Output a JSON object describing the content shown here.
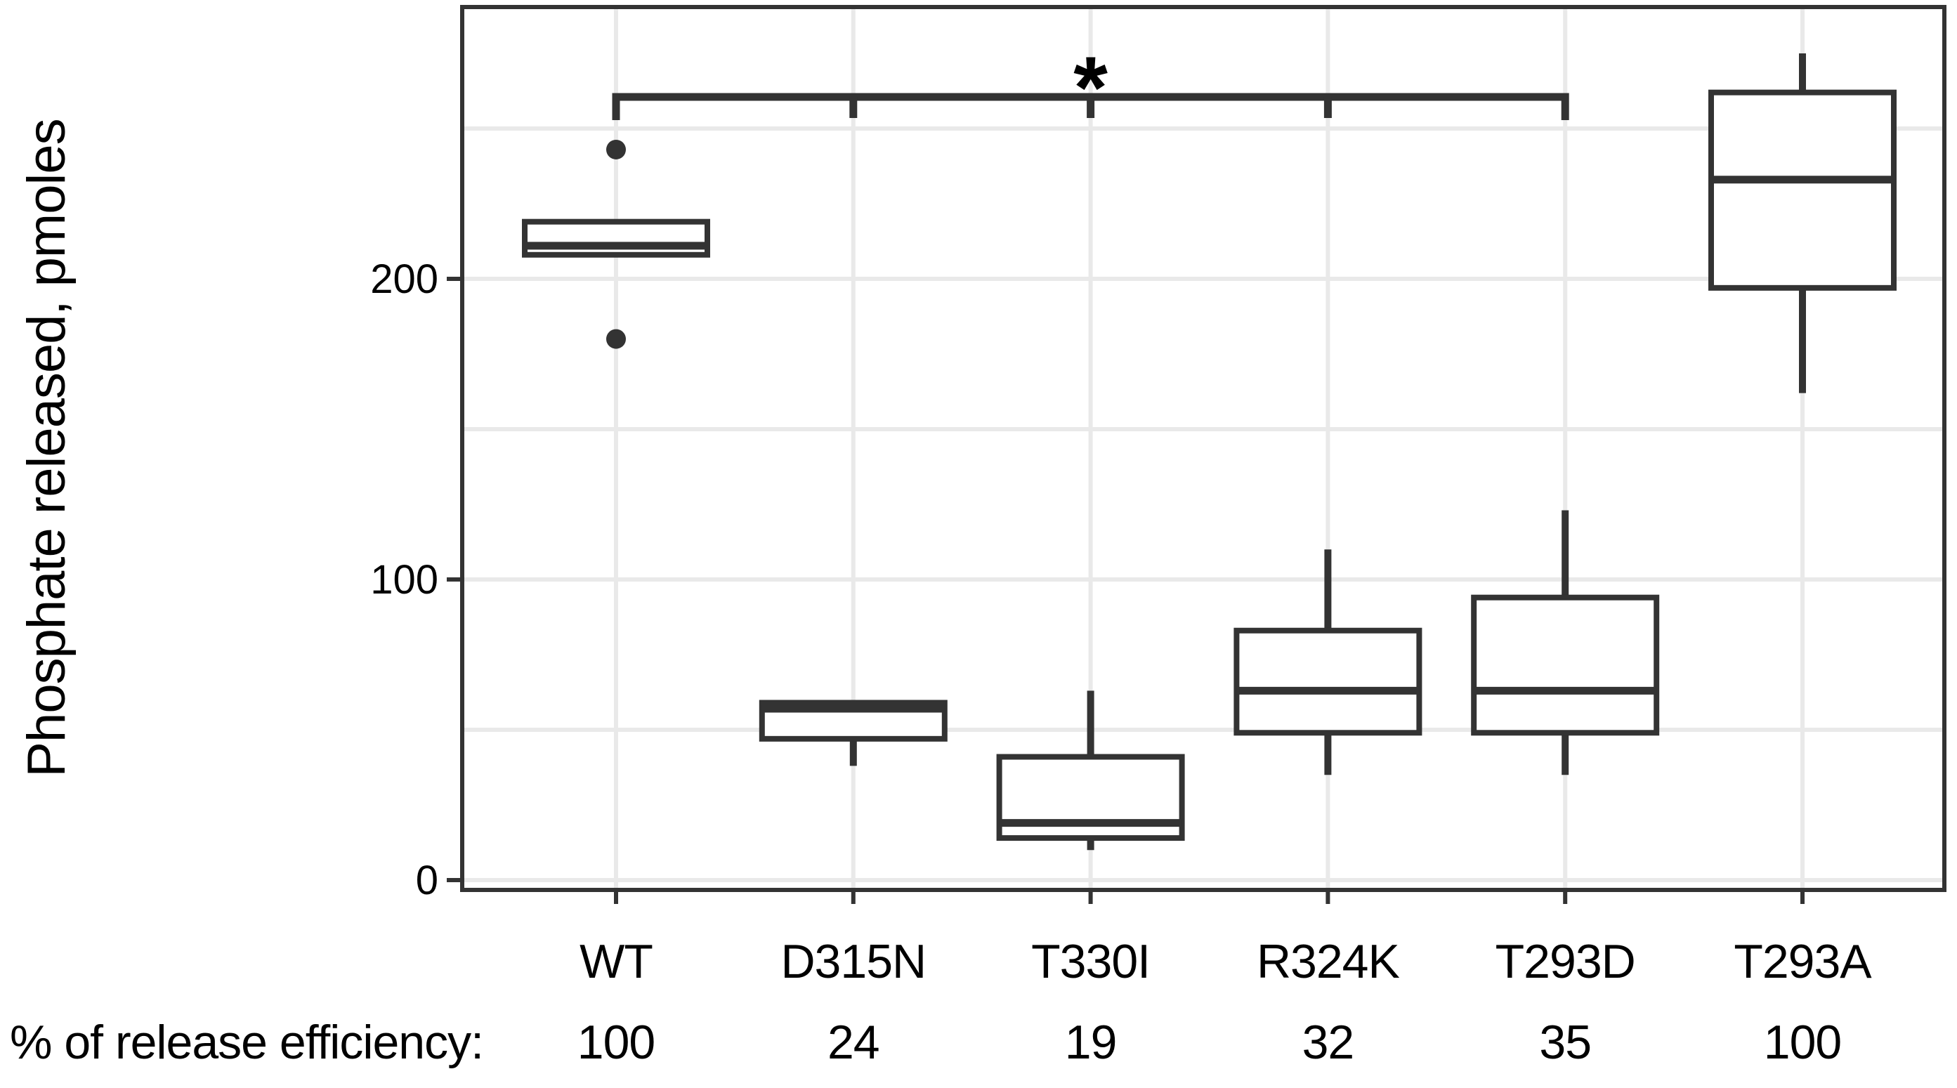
{
  "figure": {
    "y_axis_title": "Phosphate released, pmoles",
    "footer_label": "% of release efficiency:",
    "significance_label": "*"
  },
  "colors": {
    "ink": "#333333",
    "grid": "#e9e9e9",
    "text": "#000000",
    "background": "#ffffff"
  },
  "chart_data": {
    "type": "box",
    "title": "",
    "xlabel": "",
    "ylabel": "Phosphate released, pmoles",
    "ylim": [
      0,
      290
    ],
    "yticks": [
      0,
      100,
      200
    ],
    "grid_interval": 50,
    "grid": "light horizontal every 50 units and vertical at each category",
    "legend": "none",
    "categories": [
      "WT",
      "D315N",
      "T330I",
      "R324K",
      "T293D",
      "T293A"
    ],
    "release_efficiency_percent": [
      100,
      24,
      19,
      32,
      35,
      100
    ],
    "boxes": [
      {
        "category": "WT",
        "whisker_low": 208,
        "q1": 208,
        "median": 211,
        "q3": 219,
        "whisker_high": 219,
        "outliers": [
          243,
          180
        ]
      },
      {
        "category": "D315N",
        "whisker_low": 38,
        "q1": 47,
        "median": 57,
        "q3": 59,
        "whisker_high": 59,
        "outliers": []
      },
      {
        "category": "T330I",
        "whisker_low": 10,
        "q1": 14,
        "median": 19,
        "q3": 41,
        "whisker_high": 63,
        "outliers": []
      },
      {
        "category": "R324K",
        "whisker_low": 35,
        "q1": 49,
        "median": 63,
        "q3": 83,
        "whisker_high": 110,
        "outliers": []
      },
      {
        "category": "T293D",
        "whisker_low": 35,
        "q1": 49,
        "median": 63,
        "q3": 94,
        "whisker_high": 123,
        "outliers": []
      },
      {
        "category": "T293A",
        "whisker_low": 162,
        "q1": 197,
        "median": 233,
        "q3": 262,
        "whisker_high": 275,
        "outliers": []
      }
    ],
    "significance": {
      "from_category": "WT",
      "to_category": "T293D",
      "label": "*",
      "tick_categories": [
        "WT",
        "D315N",
        "T330I",
        "R324K",
        "T293D"
      ]
    }
  }
}
